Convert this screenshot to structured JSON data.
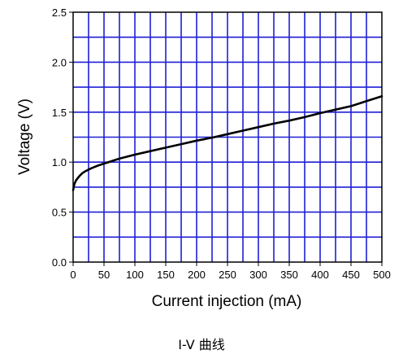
{
  "caption": "I-V  曲线",
  "chart_data": {
    "type": "line",
    "xlabel": "Current injection (mA)",
    "ylabel": "Voltage (V)",
    "xlim": [
      0,
      500
    ],
    "ylim": [
      0,
      2.5
    ],
    "x_ticks": [
      0,
      50,
      100,
      150,
      200,
      250,
      300,
      350,
      400,
      450,
      500
    ],
    "y_ticks": [
      0.0,
      0.5,
      1.0,
      1.5,
      2.0,
      2.5
    ],
    "y_tick_labels": [
      "0.0",
      "0.5",
      "1.0",
      "1.5",
      "2.0",
      "2.5"
    ],
    "grid": true,
    "grid_color": "#1f1fd6",
    "line_color": "#000000",
    "series": [
      {
        "x": [
          0,
          2,
          5,
          10,
          15,
          20,
          30,
          40,
          50,
          75,
          100,
          125,
          150,
          175,
          200,
          225,
          250,
          275,
          300,
          325,
          350,
          375,
          400,
          425,
          450,
          475,
          500
        ],
        "values": [
          0.72,
          0.78,
          0.82,
          0.86,
          0.89,
          0.91,
          0.94,
          0.965,
          0.985,
          1.035,
          1.075,
          1.11,
          1.145,
          1.18,
          1.215,
          1.245,
          1.28,
          1.315,
          1.35,
          1.385,
          1.415,
          1.45,
          1.49,
          1.525,
          1.56,
          1.61,
          1.66
        ]
      }
    ]
  }
}
